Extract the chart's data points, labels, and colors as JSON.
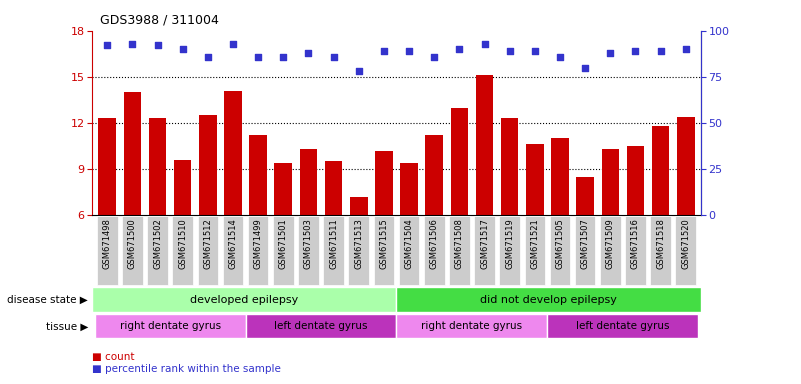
{
  "title": "GDS3988 / 311004",
  "samples": [
    "GSM671498",
    "GSM671500",
    "GSM671502",
    "GSM671510",
    "GSM671512",
    "GSM671514",
    "GSM671499",
    "GSM671501",
    "GSM671503",
    "GSM671511",
    "GSM671513",
    "GSM671515",
    "GSM671504",
    "GSM671506",
    "GSM671508",
    "GSM671517",
    "GSM671519",
    "GSM671521",
    "GSM671505",
    "GSM671507",
    "GSM671509",
    "GSM671516",
    "GSM671518",
    "GSM671520"
  ],
  "bar_values": [
    12.3,
    14.0,
    12.3,
    9.6,
    12.5,
    14.1,
    11.2,
    9.4,
    10.3,
    9.5,
    7.2,
    10.2,
    9.4,
    11.2,
    13.0,
    15.1,
    12.3,
    10.6,
    11.0,
    8.5,
    10.3,
    10.5,
    11.8,
    12.4
  ],
  "dot_values_pct": [
    92,
    93,
    92,
    90,
    86,
    93,
    86,
    86,
    88,
    86,
    78,
    89,
    89,
    86,
    90,
    93,
    89,
    89,
    86,
    80,
    88,
    89,
    89,
    90
  ],
  "bar_color": "#cc0000",
  "dot_color": "#3333cc",
  "ylim_left": [
    6,
    18
  ],
  "yticks_left": [
    6,
    9,
    12,
    15,
    18
  ],
  "ylim_right": [
    0,
    100
  ],
  "yticks_right": [
    0,
    25,
    50,
    75,
    100
  ],
  "disease_state_labels": [
    "developed epilepsy",
    "did not develop epilepsy"
  ],
  "disease_state_colors": [
    "#aaffaa",
    "#44dd44"
  ],
  "disease_state_split": 12,
  "tissue_labels": [
    "right dentate gyrus",
    "left dentate gyrus",
    "right dentate gyrus",
    "left dentate gyrus"
  ],
  "tissue_colors": [
    "#ee88ee",
    "#bb33bb",
    "#ee88ee",
    "#bb33bb"
  ],
  "tissue_ranges": [
    6,
    6,
    6,
    6
  ],
  "legend_items": [
    "count",
    "percentile rank within the sample"
  ],
  "legend_colors": [
    "#cc0000",
    "#3333cc"
  ],
  "tick_bg_color": "#cccccc"
}
